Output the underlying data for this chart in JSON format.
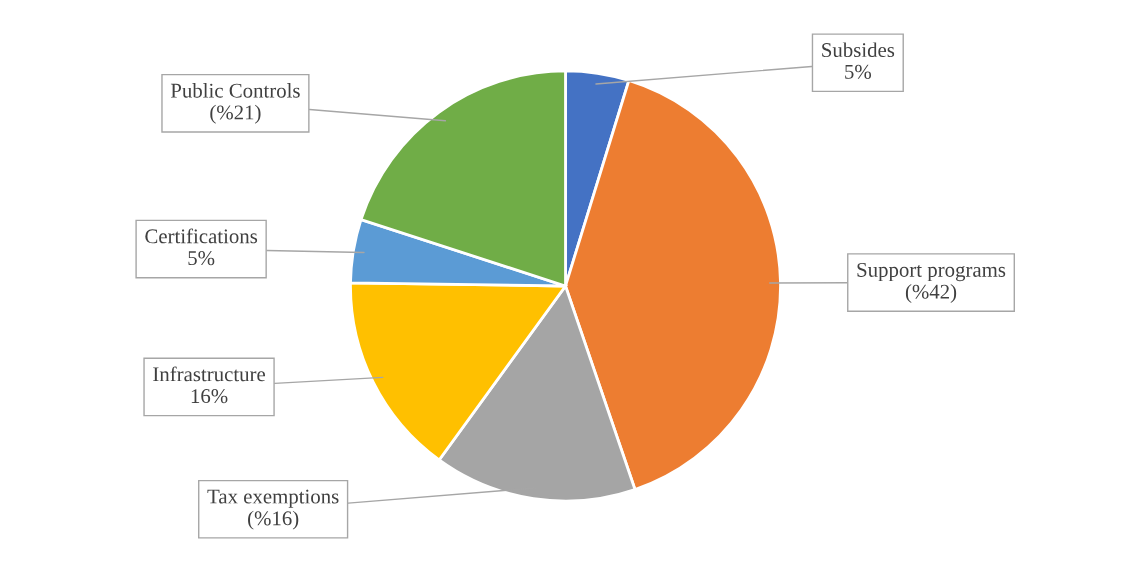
{
  "chart_data": {
    "type": "pie",
    "categories": [
      "Subsides",
      "Support programs",
      "Tax exemptions",
      "Infrastructure",
      "Certifications",
      "Public Controls"
    ],
    "values": [
      5,
      42,
      16,
      16,
      5,
      21
    ],
    "value_labels": [
      "5%",
      "(%42)",
      "(%16)",
      "16%",
      "5%",
      "(%21)"
    ],
    "colors": [
      "#4472c4",
      "#ed7d31",
      "#a5a5a5",
      "#ffc000",
      "#5b9bd5",
      "#70ad47"
    ]
  }
}
